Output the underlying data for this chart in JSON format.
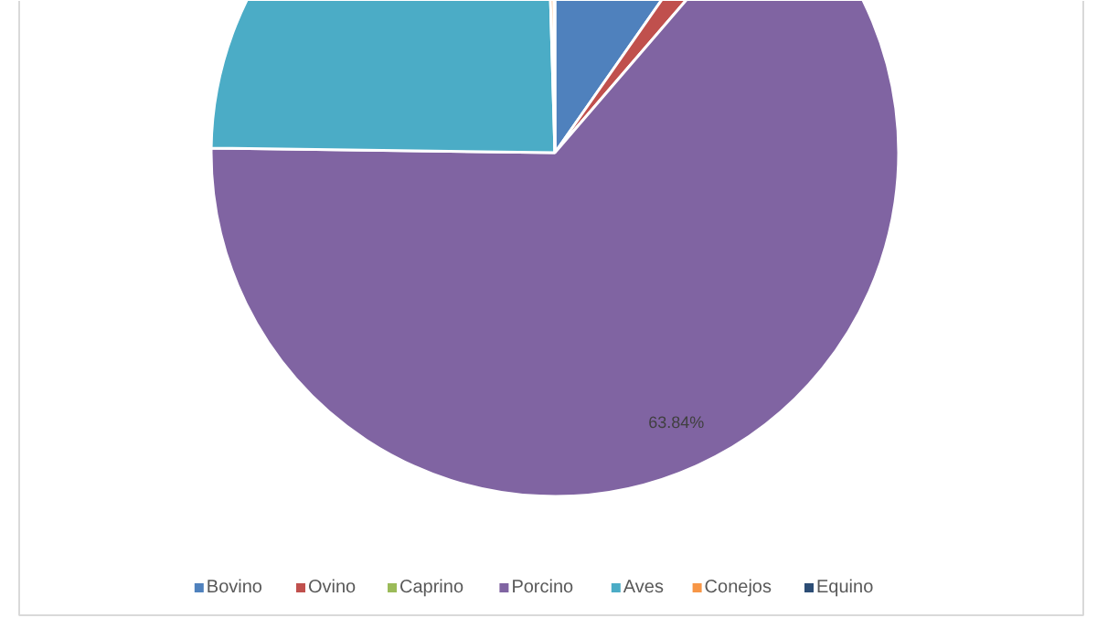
{
  "chart_data": {
    "type": "pie",
    "categories": [
      "Bovino",
      "Ovino",
      "Caprino",
      "Porcino",
      "Aves",
      "Conejos",
      "Equino"
    ],
    "values": [
      9.7,
      1.6,
      null,
      63.84,
      24.3,
      0.36,
      0.1
    ],
    "colors": [
      "#4f81bd",
      "#c0504d",
      "#9bbb59",
      "#8064a2",
      "#4bacc6",
      "#f79646",
      "#2c4d75"
    ],
    "value_labels": [
      null,
      null,
      null,
      "63.84%",
      null,
      null,
      null
    ],
    "legend": "bottom"
  }
}
